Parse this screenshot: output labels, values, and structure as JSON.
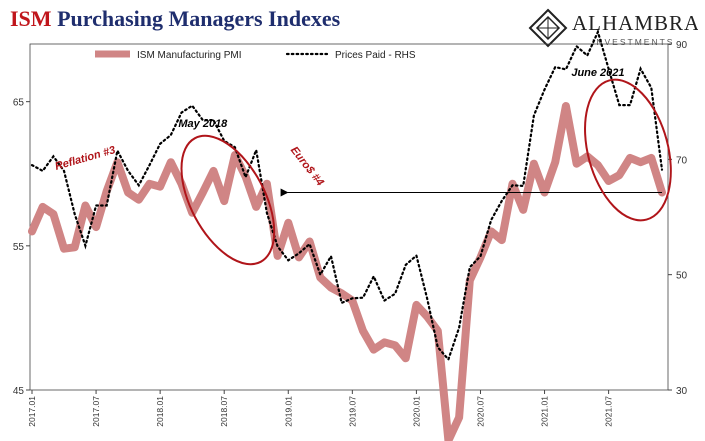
{
  "header": {
    "title_part1": "ISM",
    "title_part2": "Purchasing Managers Indexes"
  },
  "logo": {
    "name": "ALHAMBRA",
    "sub": "INVESTMENTS",
    "icon": "alhambra-diamond-logo"
  },
  "colors": {
    "pmi": "#d08585",
    "prices": "#000000",
    "annotation": "#b0151a",
    "title_red": "#c0151b",
    "title_navy": "#1f2e6e"
  },
  "chart_data": {
    "type": "line",
    "title": "ISM Purchasing Managers Indexes",
    "x_start": "2017-01",
    "x_ticks": [
      "2017.01",
      "2017.07",
      "2018.01",
      "2018.07",
      "2019.01",
      "2019.07",
      "2020.01",
      "2020.07",
      "2021.01",
      "2021.07"
    ],
    "y_left": {
      "range": [
        45,
        69
      ],
      "ticks": [
        45,
        55,
        65
      ]
    },
    "y_right": {
      "range": [
        30,
        90
      ],
      "ticks": [
        30,
        50,
        70,
        90
      ]
    },
    "legend_position": "top-left",
    "grid": false,
    "series": [
      {
        "name": "ISM Manufacturing PMI",
        "axis": "left",
        "style": "thick-solid",
        "values": [
          56.0,
          57.7,
          57.2,
          54.8,
          54.9,
          57.8,
          56.3,
          58.8,
          60.8,
          58.7,
          58.2,
          59.3,
          59.1,
          60.8,
          59.3,
          57.3,
          58.7,
          60.2,
          58.1,
          61.3,
          59.8,
          57.7,
          59.3,
          54.3,
          56.6,
          54.2,
          55.3,
          52.8,
          52.1,
          51.7,
          51.2,
          49.1,
          47.8,
          48.3,
          48.1,
          47.2,
          50.9,
          50.1,
          49.1,
          41.5,
          43.1,
          52.6,
          54.2,
          56.0,
          55.4,
          59.3,
          57.5,
          60.7,
          58.7,
          60.8,
          64.7,
          60.7,
          61.2,
          60.6,
          59.5,
          59.9,
          61.1,
          60.8,
          61.1,
          58.7
        ]
      },
      {
        "name": "Prices Paid - RHS",
        "axis": "right",
        "style": "dotted",
        "values": [
          69.0,
          68.0,
          70.5,
          68.0,
          60.5,
          55.0,
          62.0,
          62.0,
          71.5,
          68.0,
          65.5,
          69.0,
          72.7,
          74.2,
          78.1,
          79.3,
          76.8,
          76.8,
          73.2,
          72.1,
          66.9,
          71.6,
          60.7,
          54.9,
          52.5,
          53.7,
          55.3,
          50.0,
          53.2,
          45.1,
          45.9,
          46.0,
          49.7,
          45.5,
          46.7,
          51.7,
          53.3,
          45.9,
          37.4,
          35.3,
          40.8,
          51.3,
          53.2,
          59.5,
          62.8,
          65.5,
          65.4,
          77.6,
          82.1,
          86.0,
          85.6,
          89.6,
          88.0,
          92.1,
          85.7,
          79.4,
          79.4,
          85.7,
          82.4,
          68.2
        ]
      }
    ],
    "annotations": [
      {
        "text": "Reflation #3",
        "near_month": "2017-07"
      },
      {
        "text": "May 2018",
        "near_month": "2018-05"
      },
      {
        "text": "Euro$ #4",
        "near_month": "2019-01"
      },
      {
        "text": "June 2021",
        "near_month": "2021-06"
      }
    ],
    "reference_arrow": {
      "from_month": "2021-12",
      "to_month": "2018-12",
      "level": 58.7
    }
  }
}
